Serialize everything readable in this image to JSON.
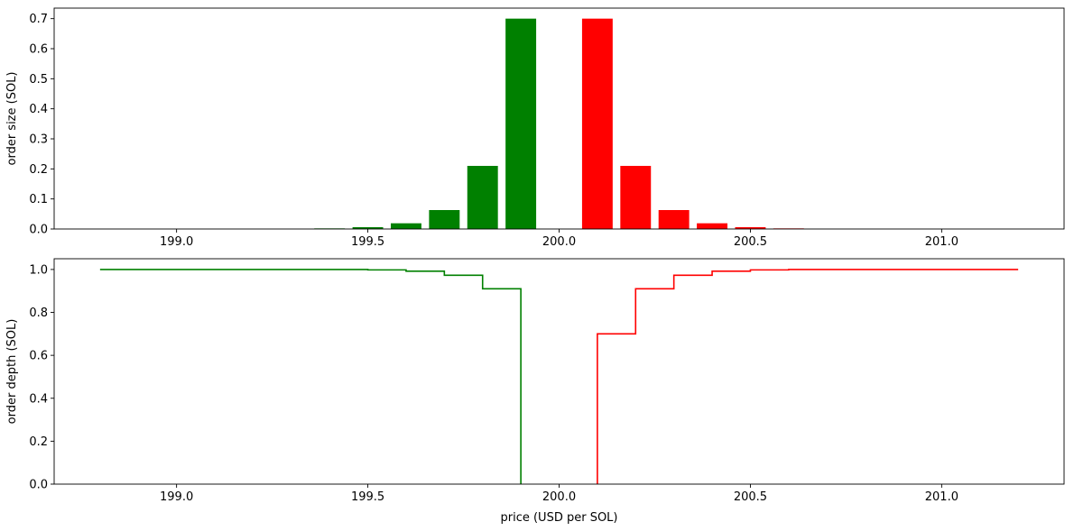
{
  "chart_data": [
    {
      "type": "bar",
      "xlabel": "",
      "ylabel": "order size (SOL)",
      "xlim": [
        198.68,
        201.32
      ],
      "ylim": [
        0,
        0.735
      ],
      "xticks": [
        199.0,
        199.5,
        200.0,
        200.5,
        201.0
      ],
      "xtick_labels": [
        "199.0",
        "199.5",
        "200.0",
        "200.5",
        "201.0"
      ],
      "yticks": [
        0.0,
        0.1,
        0.2,
        0.3,
        0.4,
        0.5,
        0.6,
        0.7
      ],
      "ytick_labels": [
        "0.0",
        "0.1",
        "0.2",
        "0.3",
        "0.4",
        "0.5",
        "0.6",
        "0.7"
      ],
      "bar_width": 0.08,
      "series": [
        {
          "color": "#008000",
          "x": [
            198.8,
            198.9,
            199.0,
            199.1,
            199.2,
            199.3,
            199.4,
            199.5,
            199.6,
            199.7,
            199.8,
            199.9
          ],
          "values": [
            0.0,
            0.0,
            0.0,
            0.0,
            0.0,
            0.0,
            0.002,
            0.006,
            0.019,
            0.063,
            0.21,
            0.7
          ]
        },
        {
          "color": "#ff0000",
          "x": [
            200.1,
            200.2,
            200.3,
            200.4,
            200.5,
            200.6,
            200.7,
            200.8,
            200.9,
            201.0,
            201.1,
            201.2
          ],
          "values": [
            0.7,
            0.21,
            0.063,
            0.019,
            0.006,
            0.002,
            0.0,
            0.0,
            0.0,
            0.0,
            0.0,
            0.0
          ]
        }
      ]
    },
    {
      "type": "line",
      "step": "pre",
      "xlabel": "price (USD per SOL)",
      "ylabel": "order depth (SOL)",
      "xlim": [
        198.68,
        201.32
      ],
      "ylim": [
        0,
        1.05
      ],
      "xticks": [
        199.0,
        199.5,
        200.0,
        200.5,
        201.0
      ],
      "xtick_labels": [
        "199.0",
        "199.5",
        "200.0",
        "200.5",
        "201.0"
      ],
      "yticks": [
        0.0,
        0.2,
        0.4,
        0.6,
        0.8,
        1.0
      ],
      "ytick_labels": [
        "0.0",
        "0.2",
        "0.4",
        "0.6",
        "0.8",
        "1.0"
      ],
      "series": [
        {
          "color": "#008000",
          "x": [
            198.8,
            199.3,
            199.5,
            199.6,
            199.7,
            199.8,
            199.9,
            199.9
          ],
          "values": [
            1.0,
            1.0,
            0.998,
            0.992,
            0.973,
            0.91,
            0.7,
            0.0
          ]
        },
        {
          "color": "#ff0000",
          "x": [
            200.1,
            200.1,
            200.2,
            200.3,
            200.4,
            200.5,
            200.6,
            201.2
          ],
          "values": [
            0.0,
            0.7,
            0.91,
            0.973,
            0.992,
            0.998,
            1.0,
            1.0
          ]
        }
      ]
    }
  ]
}
